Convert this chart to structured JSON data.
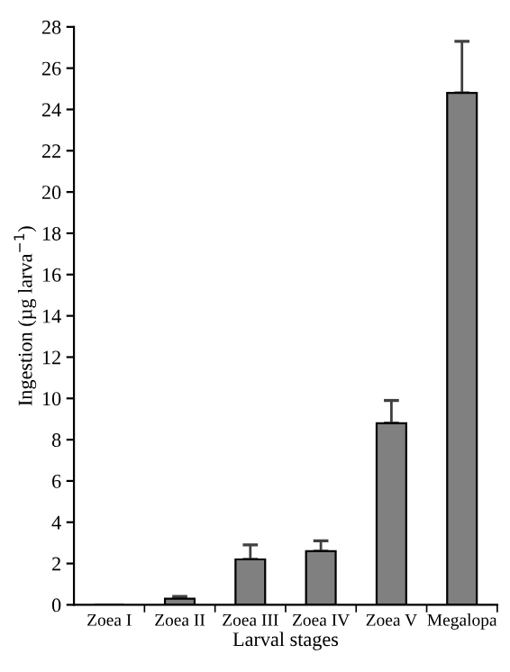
{
  "chart_data": {
    "type": "bar",
    "xlabel": "Larval stages",
    "ylabel": "Ingestion (µg larva$^{−1}$)",
    "categories": [
      "Zoea I",
      "Zoea II",
      "Zoea III",
      "Zoea IV",
      "Zoea V",
      "Megalopa"
    ],
    "values": [
      0,
      0.3,
      2.2,
      2.6,
      8.8,
      24.8
    ],
    "errors": [
      null,
      [
        0.3,
        0.4
      ],
      [
        2.2,
        2.9
      ],
      [
        2.6,
        3.1
      ],
      [
        8.8,
        9.9
      ],
      [
        24.8,
        27.3
      ]
    ],
    "color": "#808080",
    "ylim": [
      0,
      28
    ],
    "yticks": [
      0,
      2,
      4,
      6,
      8,
      10,
      12,
      14,
      16,
      18,
      20,
      22,
      24,
      26,
      28
    ],
    "grid": false,
    "legend": false
  }
}
